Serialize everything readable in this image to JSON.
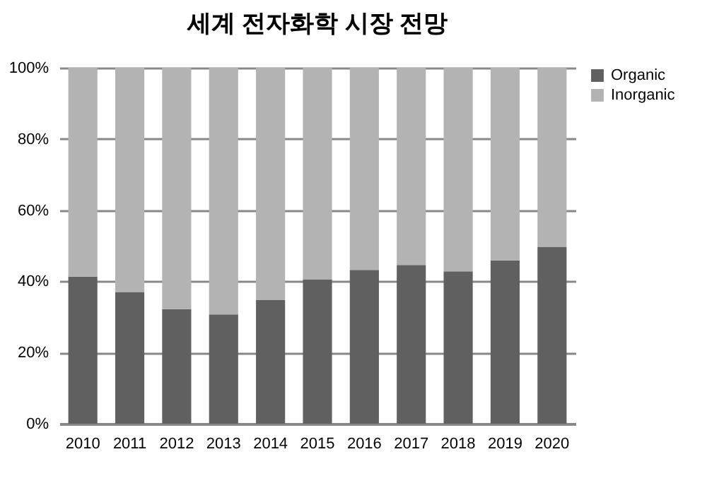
{
  "chart_data": {
    "type": "bar",
    "title": "세계 전자화학 시장 전망",
    "stacked": true,
    "categories": [
      "2010",
      "2011",
      "2012",
      "2013",
      "2014",
      "2015",
      "2016",
      "2017",
      "2018",
      "2019",
      "2020"
    ],
    "series": [
      {
        "name": "Organic",
        "color": "#606060",
        "values": [
          41.3,
          37,
          32.2,
          30.7,
          34.7,
          40.6,
          43.2,
          44.6,
          42.8,
          45.9,
          49.7
        ]
      },
      {
        "name": "Inorganic",
        "color": "#b3b3b3",
        "values": [
          58.7,
          63,
          67.8,
          69.3,
          65.3,
          59.4,
          56.8,
          55.4,
          57.2,
          54.1,
          50.3
        ]
      }
    ],
    "ylim": [
      0,
      100
    ],
    "yticks": [
      {
        "value": 0,
        "label": "0%"
      },
      {
        "value": 20,
        "label": "20%"
      },
      {
        "value": 40,
        "label": "40%"
      },
      {
        "value": 60,
        "label": "60%"
      },
      {
        "value": 80,
        "label": "80%"
      },
      {
        "value": 100,
        "label": "100%"
      }
    ],
    "grid": "y",
    "legend": "right"
  }
}
